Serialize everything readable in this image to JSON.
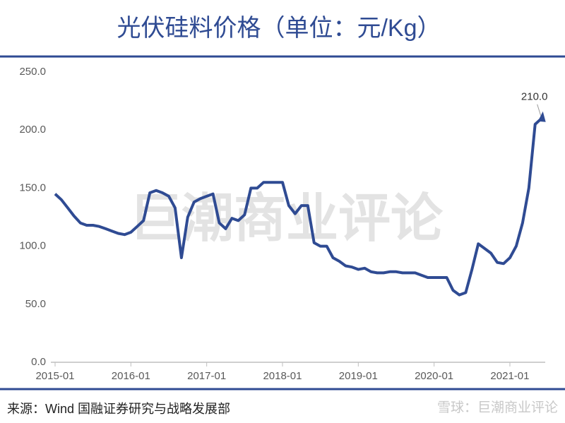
{
  "chart_data": {
    "type": "line",
    "title": "光伏硅料价格（单位：元/Kg）",
    "source": "来源：Wind  国融证券研究与战略发展部",
    "watermark": "巨潮商业评论",
    "footer_credit": "雪球：巨潮商业评论",
    "categories": [
      "2015-01",
      null,
      null,
      null,
      null,
      null,
      null,
      null,
      null,
      null,
      null,
      null,
      "2016-01",
      null,
      null,
      null,
      null,
      null,
      null,
      null,
      null,
      null,
      null,
      null,
      "2017-01",
      null,
      null,
      null,
      null,
      null,
      null,
      null,
      null,
      null,
      null,
      null,
      "2018-01",
      null,
      null,
      null,
      null,
      null,
      null,
      null,
      null,
      null,
      null,
      null,
      "2019-01",
      null,
      null,
      null,
      null,
      null,
      null,
      null,
      null,
      null,
      null,
      null,
      "2020-01",
      null,
      null,
      null,
      null,
      null,
      null,
      null,
      null,
      null,
      null,
      null,
      "2021-01",
      null,
      null,
      null,
      null,
      null
    ],
    "series": [
      {
        "color": "#2f4b93",
        "values": [
          145,
          140,
          133,
          126,
          120,
          118,
          118,
          117,
          115,
          113,
          111,
          110,
          112,
          117,
          122,
          146,
          148,
          146,
          143,
          133,
          90,
          125,
          138,
          141,
          143,
          145,
          120,
          115,
          124,
          122,
          127,
          150,
          150,
          155,
          155,
          155,
          155,
          135,
          128,
          135,
          135,
          103,
          100,
          100,
          90,
          87,
          83,
          82,
          80,
          81,
          78,
          77,
          77,
          78,
          78,
          77,
          77,
          77,
          75,
          73,
          73,
          73,
          73,
          62,
          58,
          60,
          80,
          102,
          98,
          94,
          86,
          85,
          90,
          100,
          120,
          150,
          205,
          210
        ],
        "value_labels": [
          null,
          null,
          null,
          null,
          null,
          null,
          null,
          null,
          null,
          null,
          null,
          null,
          null,
          null,
          null,
          null,
          null,
          null,
          null,
          null,
          null,
          null,
          null,
          null,
          null,
          null,
          null,
          null,
          null,
          null,
          null,
          null,
          null,
          null,
          null,
          null,
          null,
          null,
          null,
          null,
          null,
          null,
          null,
          null,
          null,
          null,
          null,
          null,
          null,
          null,
          null,
          null,
          null,
          null,
          null,
          null,
          null,
          null,
          null,
          null,
          null,
          null,
          null,
          null,
          null,
          null,
          null,
          null,
          null,
          null,
          null,
          null,
          null,
          null,
          null,
          null,
          null,
          "210.0"
        ]
      }
    ],
    "ylim": [
      0,
      250
    ],
    "yticks": [
      {
        "value": 0,
        "label": "0.0"
      },
      {
        "value": 50,
        "label": "50.0"
      },
      {
        "value": 100,
        "label": "100.0"
      },
      {
        "value": 150,
        "label": "150.0"
      },
      {
        "value": 200,
        "label": "200.0"
      },
      {
        "value": 250,
        "label": "250.0"
      }
    ],
    "grid": false
  }
}
